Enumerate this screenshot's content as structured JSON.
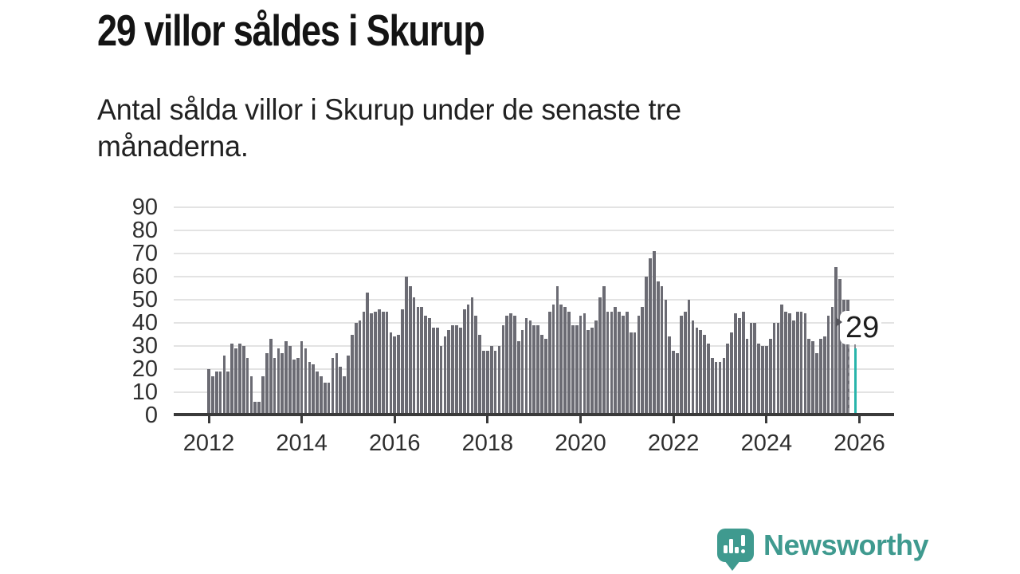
{
  "title": "29 villor såldes i Skurup",
  "subtitle": "Antal sålda villor i Skurup under de senaste tre månaderna.",
  "annotation": {
    "label": "29",
    "points_to": "latest-bar"
  },
  "logo": {
    "text": "Newsworthy"
  },
  "colors": {
    "bar": "#6b6b73",
    "highlight": "#29b5ab",
    "dashed_outline": "#8a8a90",
    "logo": "#3f9a8f",
    "grid": "#e3e3e3",
    "axis": "#3a3a3a",
    "label_text": "#2f2f2f",
    "title_text": "#141414"
  },
  "chart_data": {
    "type": "bar",
    "title": "29 villor såldes i Skurup",
    "subtitle": "Antal sålda villor i Skurup under de senaste tre månaderna.",
    "x_start": "2012-01",
    "x_interval": "monthly",
    "x_tick_labels": [
      "2012",
      "2014",
      "2016",
      "2018",
      "2020",
      "2022",
      "2024",
      "2026"
    ],
    "x_tick_month_index": [
      0,
      24,
      48,
      72,
      96,
      120,
      144,
      168
    ],
    "y_ticks": [
      0,
      10,
      20,
      30,
      40,
      50,
      60,
      70,
      80,
      90
    ],
    "ylim": [
      0,
      90
    ],
    "grid": true,
    "values": [
      20,
      17,
      19,
      19,
      26,
      19,
      31,
      29,
      31,
      30,
      25,
      17,
      6,
      6,
      17,
      27,
      33,
      25,
      29,
      27,
      32,
      30,
      24,
      25,
      32,
      29,
      23,
      22,
      19,
      17,
      14,
      14,
      25,
      27,
      21,
      17,
      26,
      35,
      40,
      41,
      45,
      53,
      44,
      45,
      46,
      45,
      45,
      36,
      34,
      35,
      46,
      60,
      56,
      51,
      47,
      47,
      43,
      42,
      38,
      38,
      30,
      34,
      37,
      39,
      39,
      38,
      46,
      48,
      51,
      43,
      35,
      28,
      28,
      30,
      28,
      30,
      39,
      43,
      44,
      43,
      32,
      37,
      42,
      41,
      39,
      39,
      35,
      33,
      45,
      48,
      56,
      48,
      47,
      45,
      39,
      39,
      43,
      44,
      37,
      38,
      41,
      51,
      56,
      45,
      45,
      47,
      45,
      43,
      45,
      36,
      36,
      43,
      47,
      60,
      68,
      71,
      58,
      56,
      50,
      34,
      28,
      27,
      43,
      45,
      50,
      41,
      38,
      37,
      35,
      31,
      25,
      23,
      23,
      25,
      31,
      36,
      44,
      42,
      45,
      33,
      40,
      40,
      31,
      30,
      30,
      33,
      40,
      40,
      48,
      45,
      44,
      41,
      45,
      45,
      44,
      33,
      32,
      27,
      33,
      34,
      43,
      47,
      64,
      59,
      50,
      50,
      45,
      29
    ],
    "highlight_index": 167,
    "highlight_value": 29,
    "preliminary_dashed_index": 166,
    "preliminary_dashed_value": 45
  }
}
